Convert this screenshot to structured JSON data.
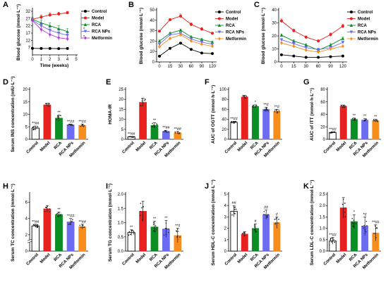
{
  "colors": {
    "Control": "#000000",
    "Model": "#e8201e",
    "RCA": "#0b8e24",
    "RCA NPs": "#6b6cf2",
    "Metformin": "#f78d1d",
    "Metformin_line": "#b43cd4"
  },
  "chart_data": [
    {
      "panel": "A",
      "type": "line",
      "xlabel": "Time (weeks)",
      "ylabel": "Blood glucose (mmol·L⁻¹)",
      "x": [
        0,
        1,
        2,
        3,
        4
      ],
      "xticks": [
        "0",
        "1",
        "2",
        "3",
        "4",
        "5"
      ],
      "yticks": [
        "7",
        "12",
        "17",
        "22",
        "27",
        "32"
      ],
      "xlim": [
        0,
        5
      ],
      "ylim": [
        2,
        33
      ],
      "series": [
        {
          "name": "Control",
          "color": "#000000",
          "marker": "circle",
          "values": [
            6.5,
            6.4,
            6.4,
            6.3,
            6.4
          ],
          "err": [
            0.3,
            0.3,
            0.3,
            0.3,
            0.3
          ]
        },
        {
          "name": "Model",
          "color": "#e8201e",
          "marker": "circle",
          "values": [
            26.5,
            28,
            29.5,
            30.2,
            31
          ],
          "err": [
            1.5,
            1.5,
            1.3,
            1.2,
            1
          ]
        },
        {
          "name": "RCA",
          "color": "#0b8e24",
          "marker": "triangle",
          "values": [
            26.5,
            24,
            22,
            20,
            18
          ],
          "err": [
            1.5,
            2,
            2,
            2,
            2
          ]
        },
        {
          "name": "RCA NPs",
          "color": "#6b6cf2",
          "marker": "triangle-down",
          "values": [
            26,
            22,
            19,
            17,
            15.5
          ],
          "err": [
            1.5,
            2,
            2,
            2,
            1.8
          ]
        },
        {
          "name": "Metformin",
          "color": "#b43cd4",
          "marker": "diamond",
          "values": [
            25.5,
            19.5,
            16,
            13.8,
            13
          ],
          "err": [
            1.5,
            2.2,
            2,
            1.8,
            1.5
          ]
        }
      ],
      "annotations": [
        "*",
        "*"
      ],
      "legend": [
        "Control",
        "Model",
        "RCA",
        "RCA NPs",
        "Metformin"
      ]
    },
    {
      "panel": "B",
      "type": "line",
      "xlabel": "",
      "ylabel": "Blood glucose (mmol·L⁻¹)",
      "x": [
        0,
        15,
        30,
        60,
        90,
        120
      ],
      "xticks": [
        "0",
        "15",
        "30",
        "60",
        "90",
        "120"
      ],
      "yticks": [
        "0",
        "10",
        "20",
        "30",
        "40",
        "50"
      ],
      "ylim": [
        0,
        50
      ],
      "series": [
        {
          "name": "Control",
          "color": "#000000",
          "marker": "circle",
          "values": [
            5.5,
            13,
            18,
            12,
            8.5,
            8
          ],
          "err": [
            0.5,
            1,
            1,
            1,
            0.5,
            0.5
          ]
        },
        {
          "name": "Model",
          "color": "#e8201e",
          "marker": "circle",
          "values": [
            29.5,
            40.5,
            44,
            36,
            31.5,
            27.5
          ],
          "err": [
            1,
            1,
            2,
            1.5,
            1.5,
            1
          ]
        },
        {
          "name": "RCA",
          "color": "#0b8e24",
          "marker": "triangle",
          "values": [
            20,
            27.5,
            30.5,
            24,
            21.5,
            19
          ],
          "err": [
            1,
            1,
            1,
            1,
            1,
            1
          ]
        },
        {
          "name": "RCA NPs",
          "color": "#6b6cf2",
          "marker": "triangle-down",
          "values": [
            17,
            26,
            27.5,
            22,
            19,
            17
          ],
          "err": [
            1,
            1,
            1,
            1,
            1,
            1
          ]
        },
        {
          "name": "Metformin",
          "color": "#f78d1d",
          "marker": "diamond",
          "values": [
            14.5,
            22.5,
            26,
            20,
            17,
            15
          ],
          "err": [
            1,
            1,
            1,
            1,
            1,
            1
          ]
        }
      ],
      "legend": [
        "Control",
        "Model",
        "RCA",
        "RCA NPs",
        "Metformin"
      ]
    },
    {
      "panel": "C",
      "type": "line",
      "xlabel": "",
      "ylabel": "Blood glucose (mmol·L⁻¹)",
      "x": [
        0,
        15,
        30,
        60,
        90,
        120
      ],
      "xticks": [
        "0",
        "15",
        "30",
        "60",
        "90",
        "120"
      ],
      "yticks": [
        "0",
        "10",
        "20",
        "30",
        "40"
      ],
      "ylim": [
        0,
        40
      ],
      "series": [
        {
          "name": "Control",
          "color": "#000000",
          "marker": "circle",
          "values": [
            5.5,
            4.5,
            3.5,
            3.5,
            4,
            4.5
          ],
          "err": [
            0.4,
            0.4,
            0.4,
            0.4,
            0.4,
            0.4
          ]
        },
        {
          "name": "Model",
          "color": "#e8201e",
          "marker": "circle",
          "values": [
            31.5,
            24,
            19,
            16,
            21,
            27.5
          ],
          "err": [
            1.5,
            1.2,
            1,
            1,
            1.2,
            1.5
          ]
        },
        {
          "name": "RCA",
          "color": "#0b8e24",
          "marker": "triangle",
          "values": [
            20.5,
            16,
            13,
            9,
            13,
            18
          ],
          "err": [
            1,
            1,
            1,
            1,
            1,
            1
          ]
        },
        {
          "name": "RCA NPs",
          "color": "#6b6cf2",
          "marker": "triangle-down",
          "values": [
            17,
            14,
            11,
            9.5,
            11,
            15
          ],
          "err": [
            1,
            1,
            1,
            1,
            1,
            1
          ]
        },
        {
          "name": "Metformin",
          "color": "#f78d1d",
          "marker": "diamond",
          "values": [
            14.5,
            12,
            9,
            7.5,
            10,
            12
          ],
          "err": [
            1,
            1,
            1,
            1,
            1,
            1
          ]
        }
      ],
      "legend": [
        "Control",
        "Model",
        "RCA",
        "RCA NPs",
        "Metformin"
      ]
    },
    {
      "panel": "D",
      "type": "bar",
      "ylabel": "Serum INS concentration (mIU·L⁻¹)",
      "categories": [
        "Control",
        "Model",
        "RCA",
        "RCA NPs",
        "Metformin"
      ],
      "values": [
        4.5,
        13.8,
        8.5,
        5.8,
        5.6
      ],
      "err": [
        0.8,
        0.6,
        1.2,
        0.3,
        0.5
      ],
      "annotations": [
        "**##",
        "",
        "**",
        "**##",
        "**##"
      ],
      "yticks": [
        "0",
        "5",
        "10",
        "15",
        "20"
      ],
      "ylim": [
        0,
        20
      ]
    },
    {
      "panel": "E",
      "type": "bar",
      "ylabel": "HOMA-IR",
      "categories": [
        "Control",
        "Model",
        "RCA",
        "RCA NPs",
        "Metformin"
      ],
      "values": [
        1.2,
        18.5,
        7,
        4,
        3.3
      ],
      "err": [
        0.2,
        2,
        1.3,
        0.5,
        0.6
      ],
      "annotations": [
        "**##",
        "",
        "**",
        "**##",
        "**##"
      ],
      "yticks": [
        "0",
        "5",
        "10",
        "15",
        "20",
        "25"
      ],
      "ylim": [
        0,
        25
      ]
    },
    {
      "panel": "F",
      "type": "bar",
      "ylabel": "AUC of OGTT (mmol·h·L⁻¹)",
      "categories": [
        "Control",
        "Model",
        "RCA",
        "RCA NPs",
        "Metformin"
      ],
      "values": [
        34,
        85,
        66,
        60,
        56
      ],
      "err": [
        2,
        3,
        3,
        4,
        4
      ],
      "annotations": [
        "**##",
        "",
        "*",
        "**#",
        "**#"
      ],
      "yticks": [
        "0",
        "20",
        "40",
        "60",
        "80",
        "100"
      ],
      "ylim": [
        0,
        100
      ]
    },
    {
      "panel": "G",
      "type": "bar",
      "ylabel": "AUC of ITT (mmol·h·L⁻¹)",
      "categories": [
        "Control",
        "Model",
        "RCA",
        "RCA NPs",
        "Metformin"
      ],
      "values": [
        11,
        53,
        32,
        31,
        30
      ],
      "err": [
        1,
        2,
        2,
        2,
        2
      ],
      "annotations": [
        "**##",
        "",
        "**",
        "**",
        "**"
      ],
      "yticks": [
        "0",
        "20",
        "40",
        "60",
        "80"
      ],
      "ylim": [
        0,
        80
      ]
    },
    {
      "panel": "H",
      "type": "bar",
      "ylabel": "Serum TC concentration (mmol·L⁻¹)",
      "categories": [
        "Control",
        "Model",
        "RCA",
        "RCA NPs",
        "Metformin"
      ],
      "values": [
        3.1,
        5.2,
        4.5,
        3.6,
        3.0
      ],
      "err": [
        0.2,
        0.4,
        0.3,
        0.4,
        0.3
      ],
      "annotations": [
        "**##",
        "",
        "**",
        "**##",
        "**##"
      ],
      "yticks": [
        "0",
        "2",
        "4",
        "6"
      ],
      "ylim": [
        0,
        7
      ],
      "axis_break": true
    },
    {
      "panel": "I",
      "type": "bar",
      "ylabel": "Serum TG concentration (mmol·L⁻¹)",
      "categories": [
        "Control",
        "Model",
        "RCA",
        "RCA NPs",
        "Metformin"
      ],
      "values": [
        0.65,
        1.4,
        0.85,
        0.78,
        0.55
      ],
      "err": [
        0.1,
        0.35,
        0.2,
        0.3,
        0.25
      ],
      "annotations": [
        "**",
        "",
        "**",
        "**",
        "**#"
      ],
      "yticks": [
        "0.0",
        "0.5",
        "1.0",
        "1.5",
        "2.0"
      ],
      "ylim": [
        0,
        2
      ]
    },
    {
      "panel": "J",
      "type": "bar",
      "ylabel": "Serum HDL-C concentration (mmol·L⁻¹)",
      "categories": [
        "Control",
        "Model",
        "RCA",
        "RCA NPs",
        "Metformin"
      ],
      "values": [
        3.5,
        1.5,
        2.0,
        3.2,
        2.5
      ],
      "err": [
        0.5,
        0.2,
        0.4,
        0.4,
        0.5
      ],
      "annotations": [
        "##",
        "",
        "#",
        "##",
        "#"
      ],
      "yticks": [
        "0",
        "1",
        "2",
        "3",
        "4",
        "5"
      ],
      "ylim": [
        0,
        5
      ]
    },
    {
      "panel": "K",
      "type": "bar",
      "ylabel": "Serum LDL-C concentration (mmol·L⁻¹)",
      "categories": [
        "Control",
        "Model",
        "RCA",
        "RCA NPs",
        "Metformin"
      ],
      "values": [
        0.45,
        1.9,
        1.3,
        1.1,
        0.8
      ],
      "err": [
        0.15,
        0.45,
        0.3,
        0.4,
        0.35
      ],
      "annotations": [
        "**##",
        "",
        "*",
        "*#",
        "**##"
      ],
      "yticks": [
        "0.0",
        "0.5",
        "1.0",
        "1.5",
        "2.0",
        "2.5"
      ],
      "ylim": [
        0,
        2.5
      ]
    }
  ]
}
